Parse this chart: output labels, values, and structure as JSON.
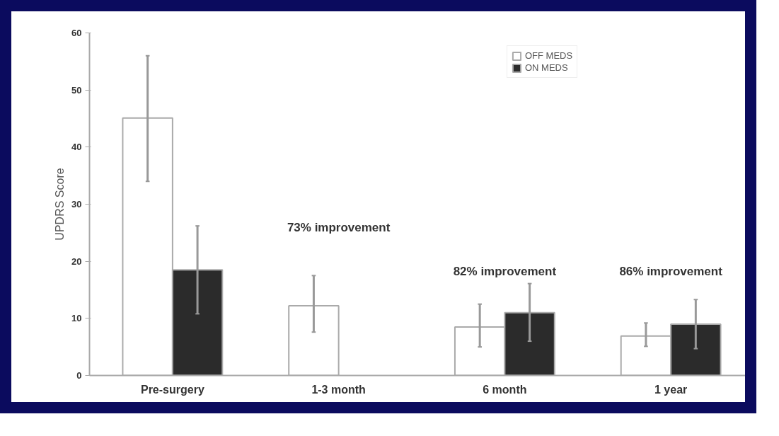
{
  "chart_data": {
    "type": "bar",
    "ylabel": "UPDRS Score",
    "categories": [
      "Pre-surgery",
      "1-3 month",
      "6 month",
      "1 year"
    ],
    "series": [
      {
        "name": "OFF MEDS",
        "color": "#ffffff",
        "values": [
          45.1,
          12.2,
          8.5,
          6.9
        ],
        "errors": [
          [
            34,
            56
          ],
          [
            7.6,
            17.5
          ],
          [
            5,
            12.5
          ],
          [
            5.1,
            9.2
          ]
        ]
      },
      {
        "name": "ON MEDS",
        "color": "#2b2b2b",
        "values": [
          18.5,
          null,
          11,
          9
        ],
        "errors": [
          [
            10.8,
            26.2
          ],
          null,
          [
            6,
            16.1
          ],
          [
            4.7,
            13.3
          ]
        ]
      }
    ],
    "ylim": [
      0,
      60
    ],
    "yticks": [
      0,
      10,
      20,
      30,
      40,
      50,
      60
    ],
    "grid": false,
    "legend": "top right",
    "annotations": [
      "73% improvement",
      "82% improvement",
      "86% improvement"
    ]
  }
}
